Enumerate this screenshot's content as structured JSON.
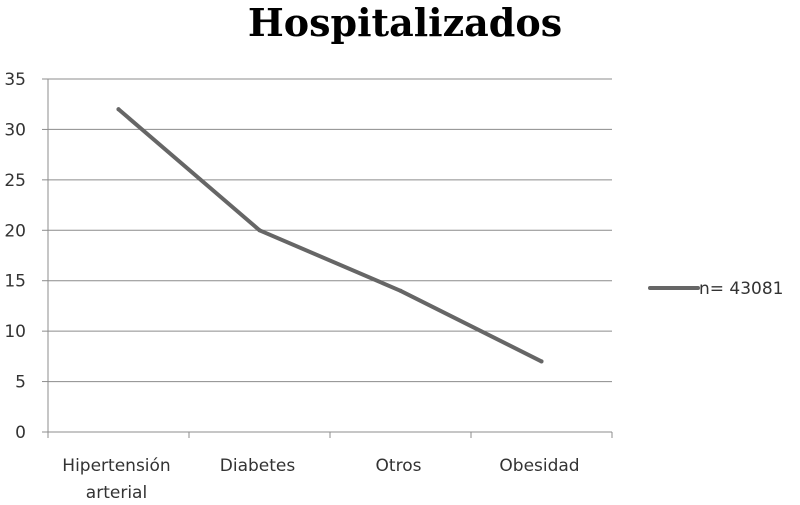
{
  "chart_data": {
    "type": "line",
    "title": "Hospitalizados",
    "categories": [
      "Hipertensión arterial",
      "Diabetes",
      "Otros",
      "Obesidad"
    ],
    "category_lines": [
      [
        "Hipertensión",
        "arterial"
      ],
      [
        "Diabetes"
      ],
      [
        "Otros"
      ],
      [
        "Obesidad"
      ]
    ],
    "series": [
      {
        "name": "n= 43081",
        "values": [
          32,
          20,
          14,
          7
        ],
        "color": "#666666"
      }
    ],
    "ylim": [
      0,
      35
    ],
    "yticks": [
      "0",
      "5",
      "10",
      "15",
      "20",
      "25",
      "30",
      "35"
    ],
    "xlabel": "",
    "ylabel": "",
    "grid": true,
    "legend": "right"
  }
}
